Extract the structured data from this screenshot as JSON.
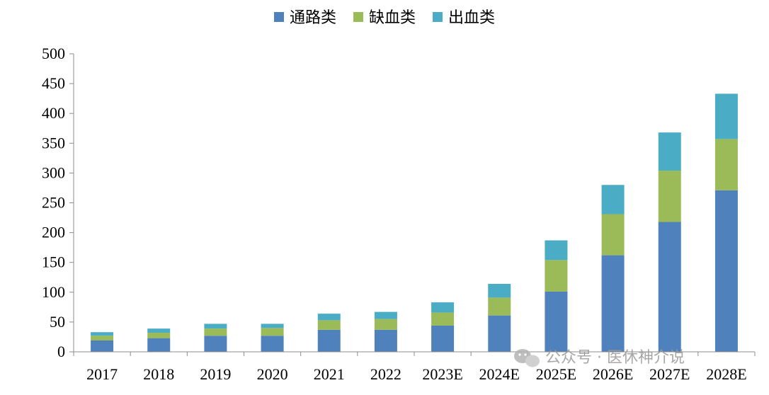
{
  "chart_data": {
    "type": "bar",
    "stacked": true,
    "categories": [
      "2017",
      "2018",
      "2019",
      "2020",
      "2021",
      "2022",
      "2023E",
      "2024E",
      "2025E",
      "2026E",
      "2027E",
      "2028E"
    ],
    "series": [
      {
        "name": "通路类",
        "color": "#4F81BD",
        "values": [
          19,
          23,
          27,
          27,
          37,
          37,
          44,
          61,
          101,
          162,
          218,
          271
        ]
      },
      {
        "name": "缺血类",
        "color": "#9BBB59",
        "values": [
          8,
          9,
          12,
          13,
          16,
          18,
          22,
          30,
          53,
          69,
          86,
          86
        ]
      },
      {
        "name": "出血类",
        "color": "#4BACC6",
        "values": [
          6,
          7,
          8,
          7,
          11,
          12,
          17,
          23,
          33,
          49,
          64,
          76
        ]
      }
    ],
    "yticks": [
      0,
      50,
      100,
      150,
      200,
      250,
      300,
      350,
      400,
      450,
      500
    ],
    "ylim": [
      0,
      500
    ],
    "legend_position": "top-center",
    "grid": false
  },
  "watermark": {
    "text": "公众号 · 医休神介说",
    "icon": "wechat-icon"
  }
}
